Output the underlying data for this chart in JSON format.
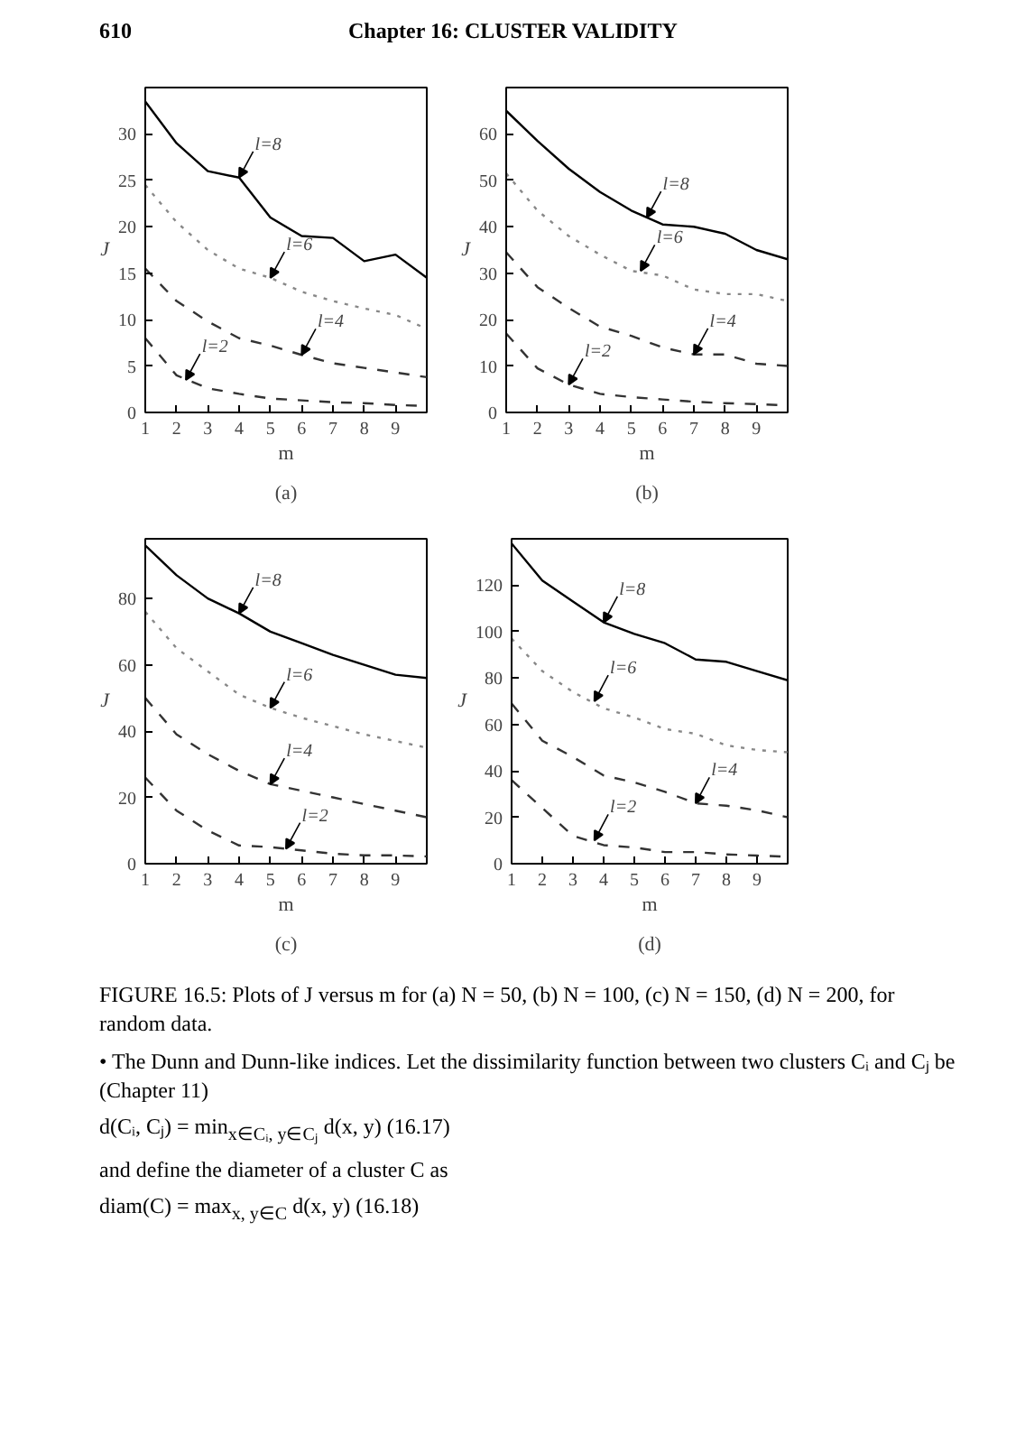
{
  "chart_data": [
    {
      "type": "other",
      "annotations": [
        "610",
        "Chapter 16: CLUSTER VALIDITY"
      ]
    },
    {
      "type": "line",
      "title": "(a)",
      "xlabel": "m",
      "ylabel": "J",
      "x": [
        1,
        2,
        3,
        4,
        5,
        6,
        7,
        8,
        9,
        10
      ],
      "xlim": [
        1,
        10
      ],
      "ylim": [
        0,
        35
      ],
      "xticks": [
        1,
        2,
        3,
        4,
        5,
        6,
        7,
        8,
        9
      ],
      "yticks": [
        0,
        5,
        10,
        15,
        20,
        25,
        30
      ],
      "series": [
        {
          "color": "#000000",
          "line_style": "solid",
          "values": [
            33.5,
            29,
            26,
            25.3,
            21,
            19,
            18.8,
            16.3,
            17,
            14.5
          ]
        },
        {
          "color": "#888888",
          "line_style": "dotted",
          "values": [
            24.5,
            20.5,
            17.5,
            15.5,
            14.5,
            13,
            12,
            11.2,
            10.5,
            9
          ]
        },
        {
          "color": "#333333",
          "line_style": "dashed",
          "values": [
            15.5,
            12,
            9.8,
            8,
            7.2,
            6.2,
            5.3,
            4.8,
            4.3,
            3.8
          ]
        },
        {
          "color": "#333333",
          "line_style": "dashed",
          "values": [
            8,
            4,
            2.6,
            2,
            1.5,
            1.3,
            1.1,
            1,
            0.8,
            0.7
          ]
        }
      ],
      "annotations": [
        {
          "text": "l=8",
          "x": 4,
          "y": 25.3
        },
        {
          "text": "l=6",
          "x": 5,
          "y": 14.5
        },
        {
          "text": "l=4",
          "x": 6,
          "y": 6.2
        },
        {
          "text": "l=2",
          "x": 2.3,
          "y": 3.5
        }
      ]
    },
    {
      "type": "line",
      "title": "(b)",
      "xlabel": "m",
      "ylabel": "J",
      "x": [
        1,
        2,
        3,
        4,
        5,
        6,
        7,
        8,
        9,
        10
      ],
      "xlim": [
        1,
        10
      ],
      "ylim": [
        0,
        70
      ],
      "xticks": [
        1,
        2,
        3,
        4,
        5,
        6,
        7,
        8,
        9
      ],
      "yticks": [
        0,
        10,
        20,
        30,
        40,
        50,
        60
      ],
      "series": [
        {
          "color": "#000000",
          "line_style": "solid",
          "values": [
            65,
            58.5,
            52.5,
            47.5,
            43.5,
            40.5,
            40,
            38.5,
            35,
            33
          ]
        },
        {
          "color": "#888888",
          "line_style": "dotted",
          "values": [
            51.5,
            43.5,
            38,
            34,
            30.5,
            29.5,
            26.5,
            25.5,
            25.5,
            24
          ]
        },
        {
          "color": "#333333",
          "line_style": "dashed",
          "values": [
            34.5,
            27,
            22.5,
            18.5,
            16.5,
            14,
            12.5,
            12.5,
            10.5,
            10
          ]
        },
        {
          "color": "#333333",
          "line_style": "dashed",
          "values": [
            17,
            9.5,
            6,
            4,
            3.3,
            2.8,
            2.3,
            2,
            1.8,
            1.5
          ]
        }
      ],
      "annotations": [
        {
          "text": "l=8",
          "x": 5.5,
          "y": 42
        },
        {
          "text": "l=6",
          "x": 5.3,
          "y": 30.5
        },
        {
          "text": "l=4",
          "x": 7,
          "y": 12.5
        },
        {
          "text": "l=2",
          "x": 3,
          "y": 6
        }
      ]
    },
    {
      "type": "line",
      "title": "(c)",
      "xlabel": "m",
      "ylabel": "J",
      "x": [
        1,
        2,
        3,
        4,
        5,
        6,
        7,
        8,
        9,
        10
      ],
      "xlim": [
        1,
        10
      ],
      "ylim": [
        0,
        98
      ],
      "xticks": [
        1,
        2,
        3,
        4,
        5,
        6,
        7,
        8,
        9
      ],
      "yticks": [
        0,
        20,
        40,
        60,
        80
      ],
      "series": [
        {
          "color": "#000000",
          "line_style": "solid",
          "values": [
            96,
            87,
            80,
            75.5,
            70,
            66.5,
            63,
            60,
            57,
            56
          ]
        },
        {
          "color": "#888888",
          "line_style": "dotted",
          "values": [
            76,
            65,
            58,
            51,
            47,
            44,
            41.5,
            39,
            37,
            35
          ]
        },
        {
          "color": "#333333",
          "line_style": "dashed",
          "values": [
            50,
            39,
            33,
            28,
            24,
            22,
            20,
            18,
            16,
            14
          ]
        },
        {
          "color": "#333333",
          "line_style": "dashed",
          "values": [
            26,
            16,
            10,
            5.5,
            5,
            4,
            3,
            2.5,
            2.5,
            2.2
          ]
        }
      ],
      "annotations": [
        {
          "text": "l=8",
          "x": 4,
          "y": 75.5
        },
        {
          "text": "l=6",
          "x": 5,
          "y": 47
        },
        {
          "text": "l=4",
          "x": 5,
          "y": 24
        },
        {
          "text": "l=2",
          "x": 5.5,
          "y": 4.5
        }
      ]
    },
    {
      "type": "line",
      "title": "(d)",
      "xlabel": "m",
      "ylabel": "J",
      "x": [
        1,
        2,
        3,
        4,
        5,
        6,
        7,
        8,
        9,
        10
      ],
      "xlim": [
        1,
        10
      ],
      "ylim": [
        0,
        140
      ],
      "xticks": [
        1,
        2,
        3,
        4,
        5,
        6,
        7,
        8,
        9
      ],
      "yticks": [
        0,
        20,
        40,
        60,
        80,
        100,
        120
      ],
      "series": [
        {
          "color": "#000000",
          "line_style": "solid",
          "values": [
            138,
            122,
            113,
            104,
            99,
            95,
            88,
            87,
            83,
            79
          ]
        },
        {
          "color": "#888888",
          "line_style": "dotted",
          "values": [
            97,
            83,
            74,
            67,
            63,
            58,
            56,
            51,
            49,
            48
          ]
        },
        {
          "color": "#333333",
          "line_style": "dashed",
          "values": [
            69,
            53,
            46,
            38,
            35,
            31,
            26,
            25,
            23,
            20
          ]
        },
        {
          "color": "#333333",
          "line_style": "dashed",
          "values": [
            36,
            24,
            12,
            8,
            7,
            5,
            5,
            4,
            3.5,
            3
          ]
        }
      ],
      "annotations": [
        {
          "text": "l=8",
          "x": 4,
          "y": 104
        },
        {
          "text": "l=6",
          "x": 3.7,
          "y": 70
        },
        {
          "text": "l=4",
          "x": 7,
          "y": 26
        },
        {
          "text": "l=2",
          "x": 3.7,
          "y": 10
        }
      ]
    },
    {
      "type": "other",
      "annotations": [
        "FIGURE 16.5: Plots of J versus m for (a) N = 50, (b) N = 100, (c) N = 150, (d) N = 200, for random data.",
        "• The Dunn and Dunn-like indices. Let the dissimilarity function between two clusters Cᵢ and Cⱼ be (Chapter 11)",
        "d(Cᵢ, Cⱼ) = min$_{x∈Cᵢ, y∈Cⱼ}$ d(x, y)   (16.17)",
        "and define the diameter of a cluster C as",
        "diam(C) = max$_{x, y∈C}$ d(x, y)   (16.18)"
      ]
    }
  ]
}
